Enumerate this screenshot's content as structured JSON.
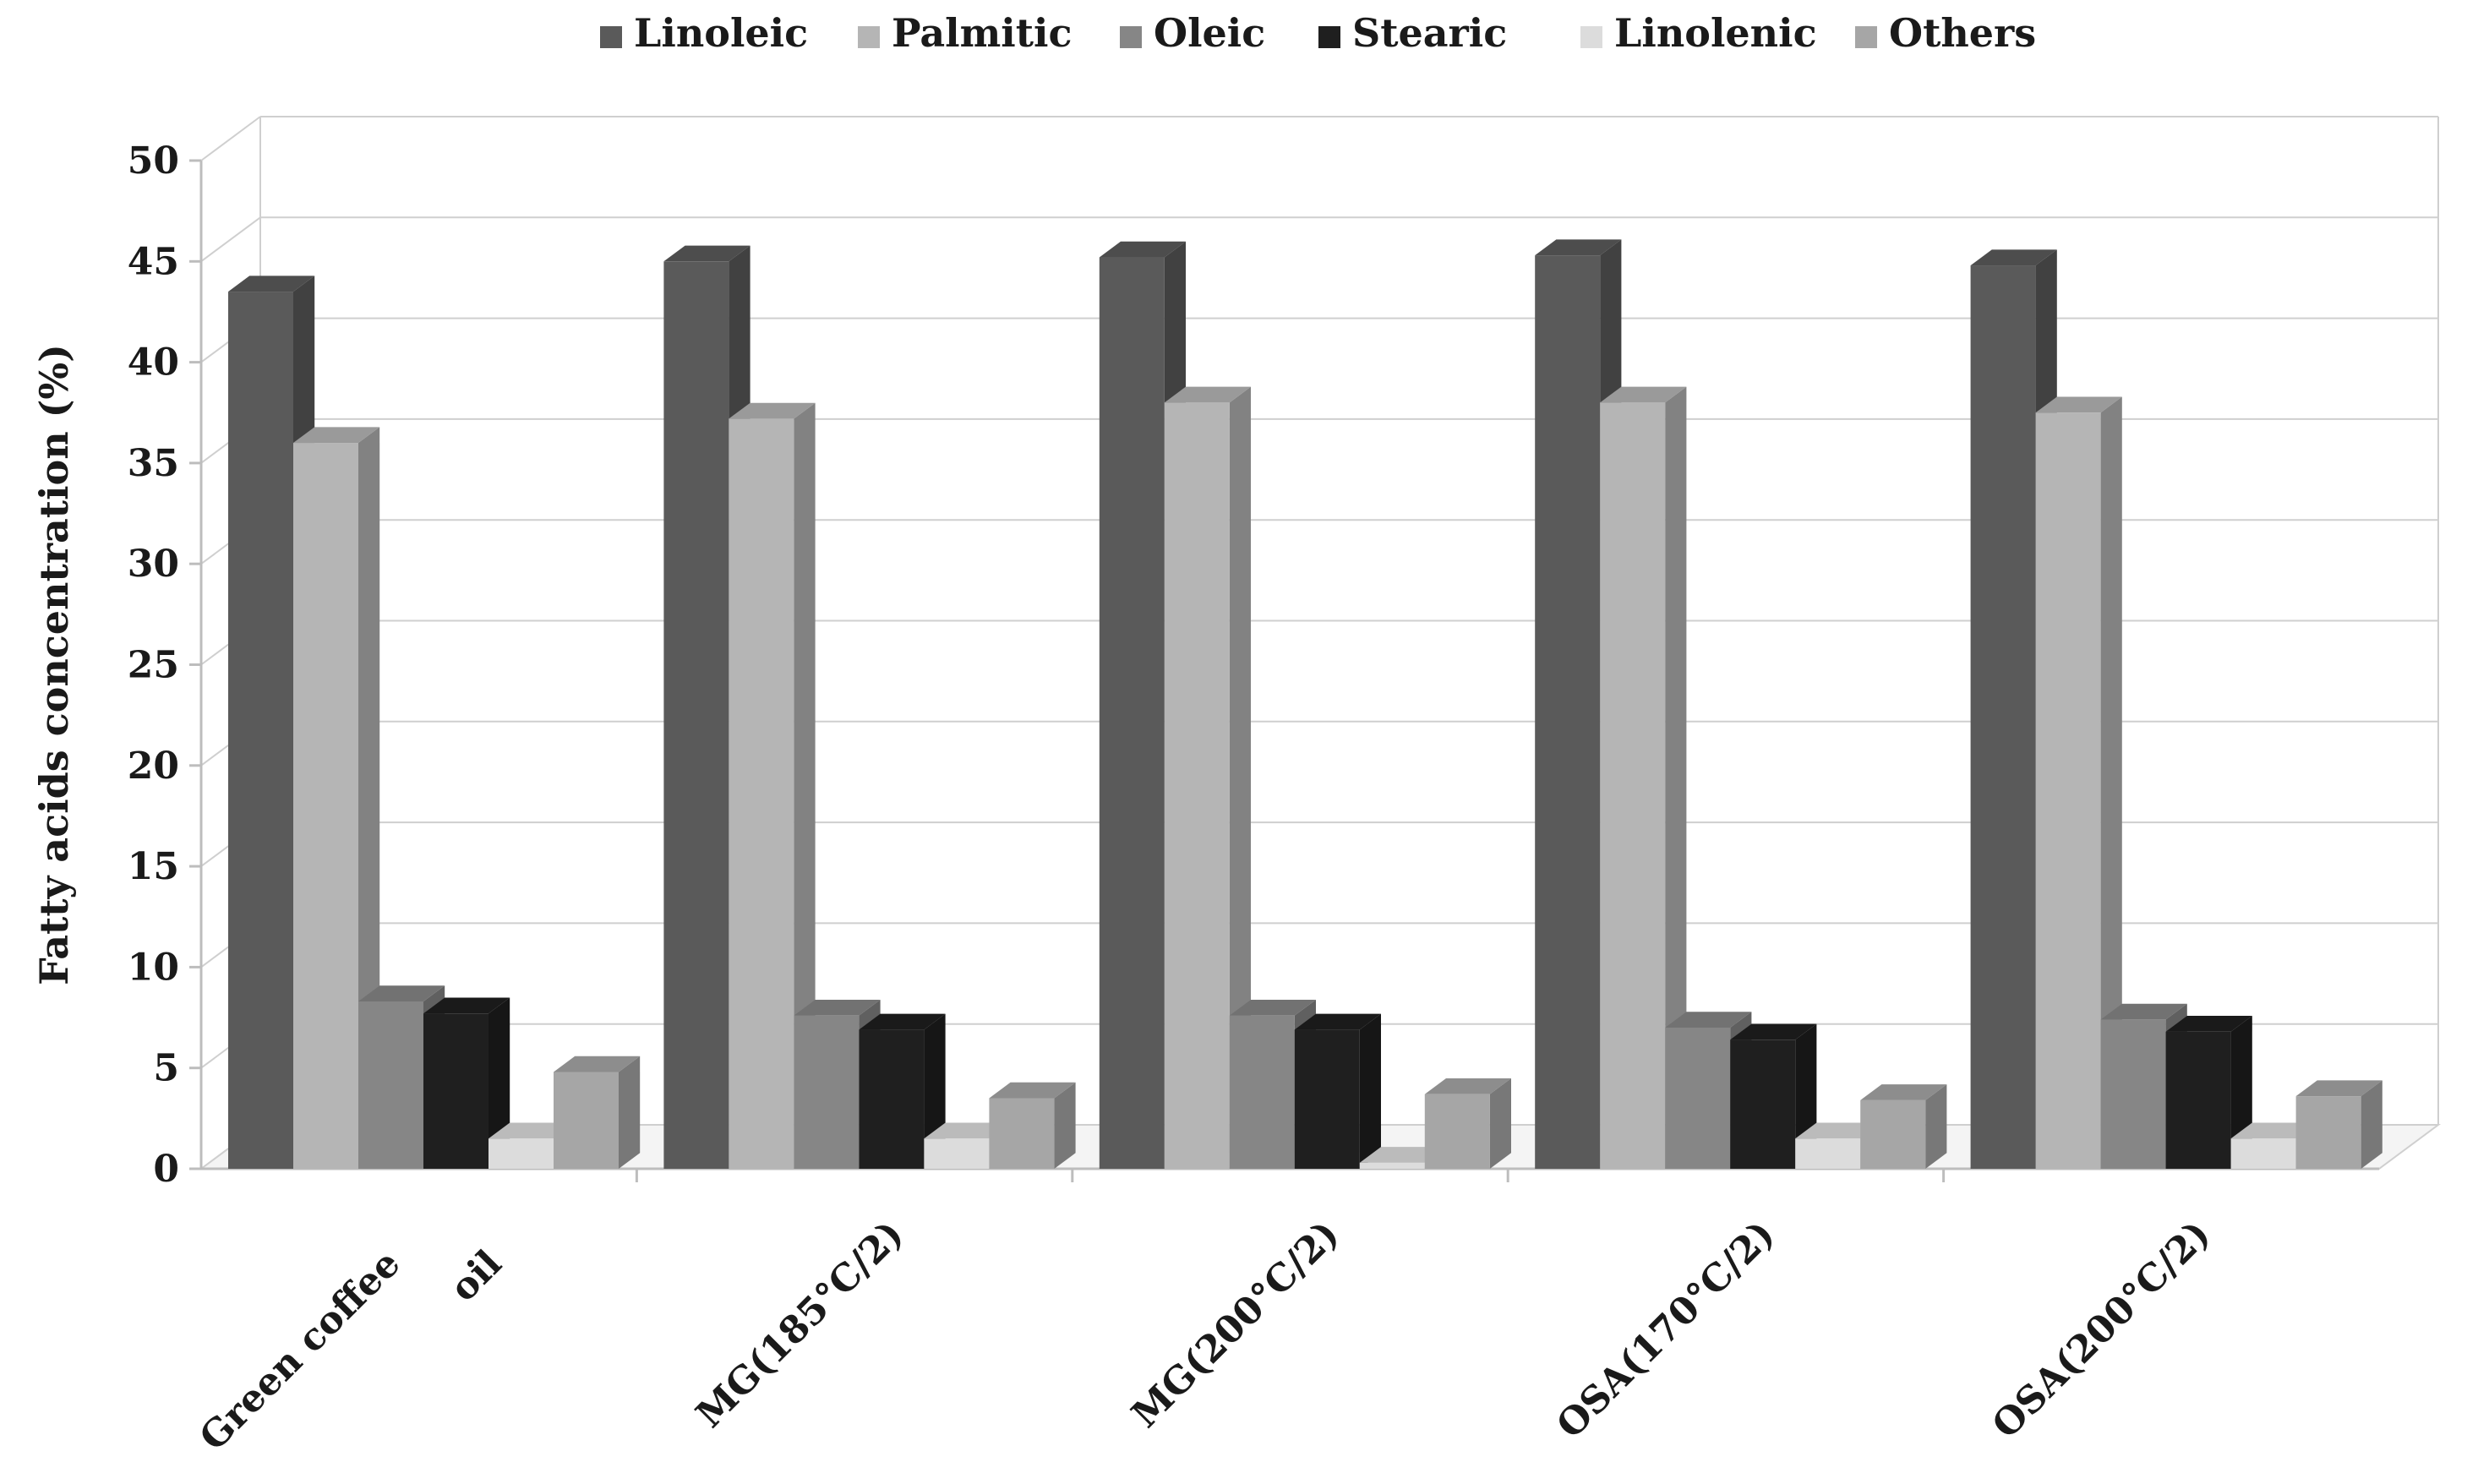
{
  "chart_data": {
    "type": "bar",
    "title": "",
    "xlabel": "",
    "ylabel": "Fatty acids concentration (%)",
    "ylim": [
      0,
      50
    ],
    "yticks": [
      0,
      5,
      10,
      15,
      20,
      25,
      30,
      35,
      40,
      45,
      50
    ],
    "grid": true,
    "legend_position": "top",
    "categories": [
      "Green coffee oil",
      "MG(185°C/2)",
      "MG(200°C/2)",
      "OSA(170°C/2)",
      "OSA(200°C/2)"
    ],
    "category_label_lines": [
      [
        "Green coffee",
        "oil"
      ],
      [
        "MG(185°C/2)"
      ],
      [
        "MG(200°C/2)"
      ],
      [
        "OSA(170°C/2)"
      ],
      [
        "OSA(200°C/2)"
      ]
    ],
    "series": [
      {
        "name": "Linoleic",
        "values": [
          43.5,
          45.0,
          45.2,
          45.3,
          44.8
        ]
      },
      {
        "name": "Palmitic",
        "values": [
          36.0,
          37.2,
          38.0,
          38.0,
          37.5
        ]
      },
      {
        "name": "Oleic",
        "values": [
          8.3,
          7.6,
          7.6,
          7.0,
          7.4
        ]
      },
      {
        "name": "Stearic",
        "values": [
          7.7,
          6.9,
          6.9,
          6.4,
          6.8
        ]
      },
      {
        "name": "Linolenic",
        "values": [
          1.5,
          1.5,
          0.3,
          1.5,
          1.5
        ]
      },
      {
        "name": "Others",
        "values": [
          4.8,
          3.5,
          3.7,
          3.4,
          3.6
        ]
      }
    ],
    "colors": [
      "#5a5a5a",
      "#b5b5b5",
      "#868686",
      "#1f1f1f",
      "#dcdcdc",
      "#a6a6a6"
    ]
  }
}
